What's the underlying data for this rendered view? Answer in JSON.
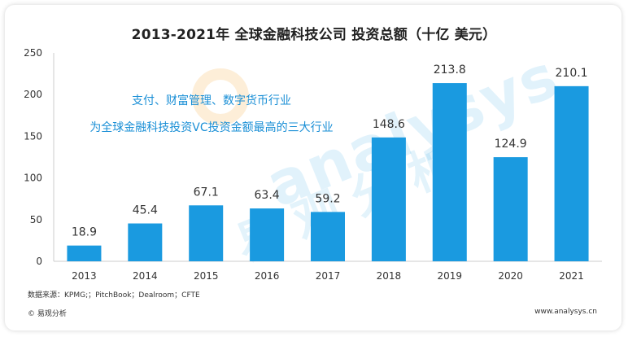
{
  "chart_data": {
    "type": "bar",
    "title": "2013-2021年 全球金融科技公司 投资总额（十亿 美元）",
    "categories": [
      "2013",
      "2014",
      "2015",
      "2016",
      "2017",
      "2018",
      "2019",
      "2020",
      "2021"
    ],
    "values": [
      18.9,
      45.4,
      67.1,
      63.4,
      59.2,
      148.6,
      213.8,
      124.9,
      210.1
    ],
    "data_labels": [
      "18.9",
      "45.4",
      "67.1",
      "63.4",
      "59.2",
      "148.6",
      "213.8",
      "124.9",
      "210.1"
    ],
    "ylim": [
      0,
      250
    ],
    "yticks": [
      0,
      50,
      100,
      150,
      200,
      250
    ],
    "xlabel": "",
    "ylabel": "",
    "grid": false,
    "bar_color": "#1a9ae0",
    "annotations": [
      "支付、财富管理、数字货币行业",
      "为全球金融科技投资VC投资金额最高的三大行业"
    ]
  },
  "footer": {
    "source": "数据来源：KPMG;；PitchBook；Dealroom；CFTE",
    "copyright": "© 易观分析",
    "website": "www.analysys.cn"
  },
  "watermark": {
    "brand": "analysys",
    "chinese": "易观分析"
  },
  "colors": {
    "accent": "#1a9ae0",
    "annotation": "#1a8fd6"
  }
}
